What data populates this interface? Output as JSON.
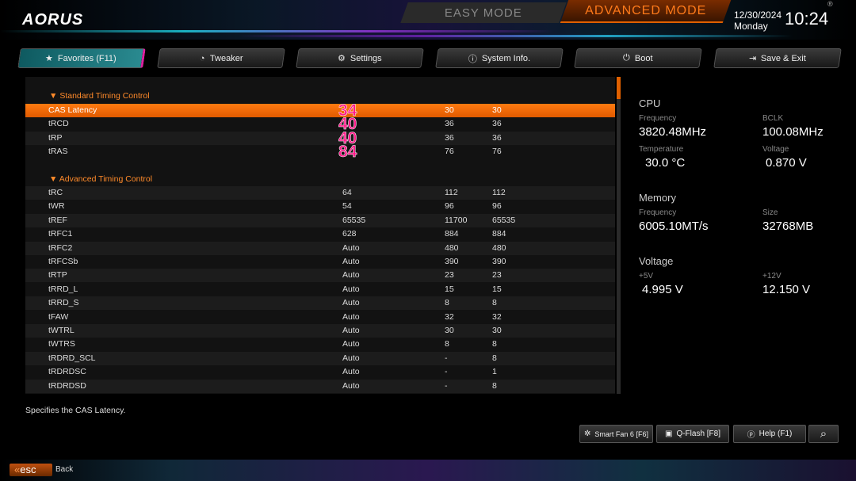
{
  "header": {
    "logo": "AORUS",
    "easy_mode": "EASY MODE",
    "advanced_mode": "ADVANCED MODE",
    "date": "12/30/2024",
    "day": "Monday",
    "time": "10:24",
    "accent": "#ff7a10"
  },
  "tabs": [
    {
      "label": "Favorites (F11)",
      "icon": "star-icon"
    },
    {
      "label": "Tweaker",
      "icon": "gauge-icon"
    },
    {
      "label": "Settings",
      "icon": "gear-icon"
    },
    {
      "label": "System Info.",
      "icon": "info-icon"
    },
    {
      "label": "Boot",
      "icon": "power-icon"
    },
    {
      "label": "Save & Exit",
      "icon": "exit-icon"
    }
  ],
  "sections": {
    "standard": {
      "title": "Standard Timing Control",
      "rows": [
        {
          "name": "CAS Latency",
          "v1": "",
          "v2": "30",
          "v3": "30",
          "overlay": "34"
        },
        {
          "name": "tRCD",
          "v1": "",
          "v2": "36",
          "v3": "36",
          "overlay": "40"
        },
        {
          "name": "tRP",
          "v1": "",
          "v2": "36",
          "v3": "36",
          "overlay": "40"
        },
        {
          "name": "tRAS",
          "v1": "",
          "v2": "76",
          "v3": "76",
          "overlay": "84"
        }
      ]
    },
    "advanced": {
      "title": "Advanced Timing Control",
      "rows": [
        {
          "name": "tRC",
          "v1": "64",
          "v2": "112",
          "v3": "112"
        },
        {
          "name": "tWR",
          "v1": "54",
          "v2": "96",
          "v3": "96"
        },
        {
          "name": "tREF",
          "v1": "65535",
          "v2": "11700",
          "v3": "65535"
        },
        {
          "name": "tRFC1",
          "v1": "628",
          "v2": "884",
          "v3": "884"
        },
        {
          "name": "tRFC2",
          "v1": "Auto",
          "v2": "480",
          "v3": "480"
        },
        {
          "name": "tRFCSb",
          "v1": "Auto",
          "v2": "390",
          "v3": "390"
        },
        {
          "name": "tRTP",
          "v1": "Auto",
          "v2": "23",
          "v3": "23"
        },
        {
          "name": "tRRD_L",
          "v1": "Auto",
          "v2": "15",
          "v3": "15"
        },
        {
          "name": "tRRD_S",
          "v1": "Auto",
          "v2": "8",
          "v3": "8"
        },
        {
          "name": "tFAW",
          "v1": "Auto",
          "v2": "32",
          "v3": "32"
        },
        {
          "name": "tWTRL",
          "v1": "Auto",
          "v2": "30",
          "v3": "30"
        },
        {
          "name": "tWTRS",
          "v1": "Auto",
          "v2": "8",
          "v3": "8"
        },
        {
          "name": "tRDRD_SCL",
          "v1": "Auto",
          "v2": "-",
          "v3": "8"
        },
        {
          "name": "tRDRDSC",
          "v1": "Auto",
          "v2": "-",
          "v3": "1"
        },
        {
          "name": "tRDRDSD",
          "v1": "Auto",
          "v2": "-",
          "v3": "8"
        }
      ]
    }
  },
  "info": {
    "cpu": {
      "title": "CPU",
      "freq_label": "Frequency",
      "freq": "3820.48MHz",
      "bclk_label": "BCLK",
      "bclk": "100.08MHz",
      "temp_label": "Temperature",
      "temp": "30.0 °C",
      "volt_label": "Voltage",
      "volt": "0.870 V"
    },
    "memory": {
      "title": "Memory",
      "freq_label": "Frequency",
      "freq": "6005.10MT/s",
      "size_label": "Size",
      "size": "32768MB"
    },
    "voltage": {
      "title": "Voltage",
      "v5_label": "+5V",
      "v5": "4.995 V",
      "v12_label": "+12V",
      "v12": "12.150 V"
    }
  },
  "description": "Specifies the CAS Latency.",
  "footer": {
    "smart_fan": "Smart Fan 6 [F6]",
    "qflash": "Q-Flash [F8]",
    "help": "Help (F1)",
    "esc": "esc",
    "back": "Back"
  }
}
